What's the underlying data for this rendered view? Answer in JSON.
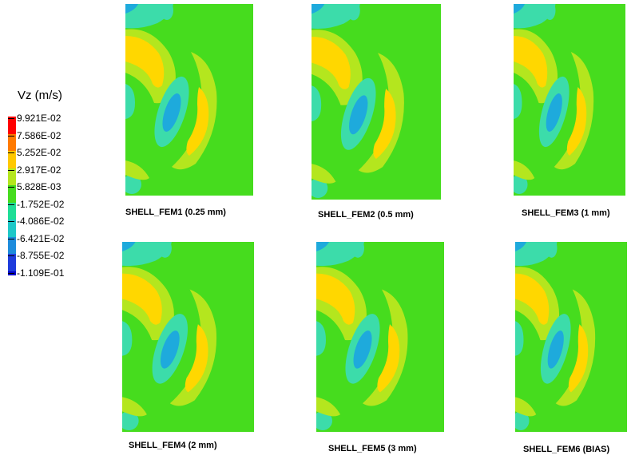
{
  "legend": {
    "title": "Vz (m/s)",
    "values": [
      "9.921E-02",
      "7.586E-02",
      "5.252E-02",
      "2.917E-02",
      "5.828E-03",
      "-1.752E-02",
      "-4.086E-02",
      "-6.421E-02",
      "-8.755E-02",
      "-1.109E-01"
    ],
    "colors": [
      "#ff0000",
      "#ff7a00",
      "#ffc800",
      "#b4e61e",
      "#46dc1e",
      "#1ede96",
      "#1ec8c8",
      "#1e8cdc",
      "#1e3cdc",
      "#0000c8"
    ]
  },
  "panels": [
    {
      "caption": "SHELL_FEM1 (0.25 mm)"
    },
    {
      "caption": "SHELL_FEM2 (0.5 mm)"
    },
    {
      "caption": "SHELL_FEM3 (1 mm)"
    },
    {
      "caption": "SHELL_FEM4 (2 mm)"
    },
    {
      "caption": "SHELL_FEM5 (3 mm)"
    },
    {
      "caption": "SHELL_FEM6 (BIAS)"
    }
  ],
  "field_colors": {
    "green": "#46dc1e",
    "yellow_green": "#b4e61e",
    "yellow": "#ffd700",
    "cyan": "#3cdcaa",
    "blue": "#1eaadc",
    "dark_blue": "#1e3cdc"
  }
}
